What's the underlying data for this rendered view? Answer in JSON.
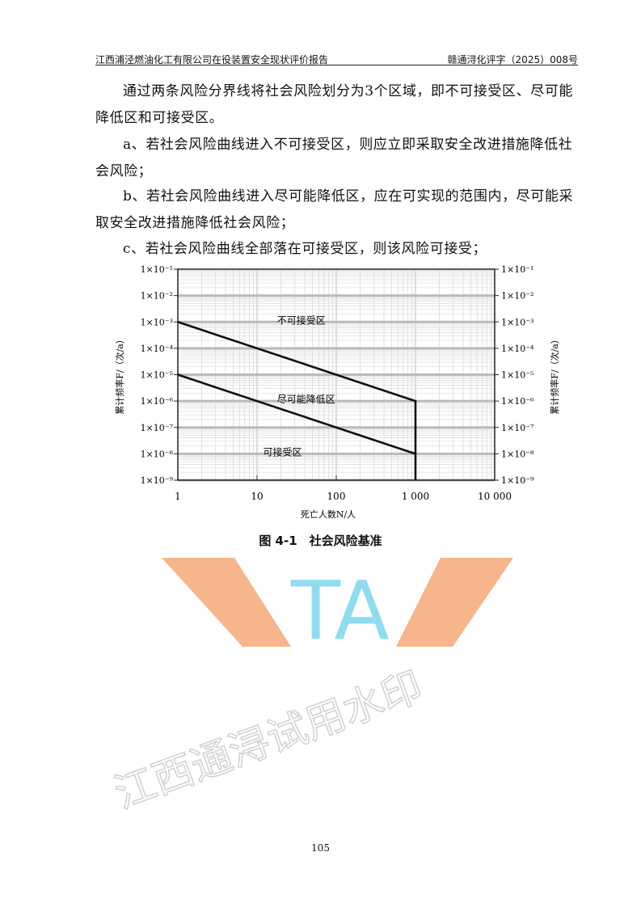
{
  "header": {
    "left": "江西浦泾燃油化工有限公司在役装置安全现状评价报告",
    "right": "赣通浔化评字（2025）008号"
  },
  "paragraphs": [
    "通过两条风险分界线将社会风险划分为3个区域，即不可接受区、尽可能降低区和可接受区。",
    "a、若社会风险曲线进入不可接受区，则应立即采取安全改进措施降低社会风险；",
    "b、若社会风险曲线进入尽可能降低区，应在可实现的范围内，尽可能采取安全改进措施降低社会风险；",
    "c、若社会风险曲线全部落在可接受区，则该风险可接受；"
  ],
  "chart_data": {
    "type": "line",
    "xlabel": "死亡人数N/人",
    "ylabel": "累计频率F/（次/a）",
    "x_scale": "log",
    "y_scale": "log",
    "xlim": [
      1,
      10000
    ],
    "ylim": [
      1e-09,
      0.1
    ],
    "x_ticks": [
      1,
      10,
      100,
      1000,
      10000
    ],
    "x_tick_labels": [
      "1",
      "10",
      "100",
      "1 000",
      "10 000"
    ],
    "y_ticks": [
      0.1,
      0.01,
      0.001,
      0.0001,
      1e-05,
      1e-06,
      1e-07,
      1e-08,
      1e-09
    ],
    "y_tick_labels": [
      "1×10⁻¹",
      "1×10⁻²",
      "1×10⁻³",
      "1×10⁻⁴",
      "1×10⁻⁵",
      "1×10⁻⁶",
      "1×10⁻⁷",
      "1×10⁻⁸",
      "1×10⁻⁹"
    ],
    "grid": true,
    "series": [
      {
        "points": [
          [
            1,
            0.001
          ],
          [
            1000,
            1e-06
          ],
          [
            1000,
            1e-09
          ]
        ]
      },
      {
        "points": [
          [
            1,
            1e-05
          ],
          [
            1000,
            1e-08
          ]
        ]
      }
    ],
    "annotations": [
      {
        "text": "不可接受区",
        "x": 30,
        "y": 0.001
      },
      {
        "text": "尽可能降低区",
        "x": 30,
        "y": 1e-06
      },
      {
        "text": "可接受区",
        "x": 20,
        "y": 1e-08
      }
    ],
    "line_color": "#111111"
  },
  "caption": "图 4-1　社会风险基准",
  "page_number": "105",
  "watermark": {
    "text": "江西通浔试用水印",
    "logo": "TA",
    "colors": {
      "orange": "#f6a878",
      "cyan": "#8fdcf0",
      "gray": "#d8d8d8"
    }
  }
}
